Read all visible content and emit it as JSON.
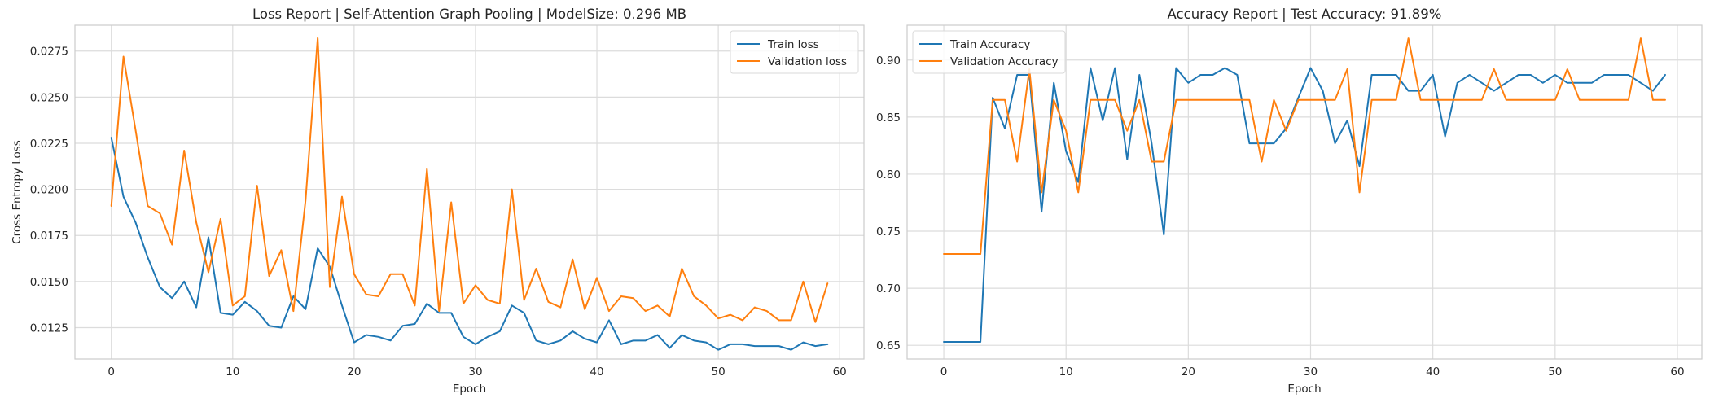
{
  "chart_data": [
    {
      "type": "line",
      "title": "Loss Report | Self-Attention Graph Pooling | ModelSize: 0.296 MB",
      "xlabel": "Epoch",
      "ylabel": "Cross Entropy Loss",
      "xlim": [
        -3,
        62
      ],
      "ylim": [
        0.0108,
        0.0289
      ],
      "xticks": [
        0,
        10,
        20,
        30,
        40,
        50,
        60
      ],
      "yticks": [
        0.0125,
        0.015,
        0.0175,
        0.02,
        0.0225,
        0.025,
        0.0275
      ],
      "ytick_labels": [
        "0.0125",
        "0.0150",
        "0.0175",
        "0.0200",
        "0.0225",
        "0.0250",
        "0.0275"
      ],
      "grid": true,
      "legend_position": "top-right",
      "series": [
        {
          "name": "Train loss",
          "color": "#1f77b4",
          "values": [
            0.0228,
            0.0196,
            0.0182,
            0.0163,
            0.0147,
            0.0141,
            0.015,
            0.0136,
            0.0174,
            0.0133,
            0.0132,
            0.0139,
            0.0134,
            0.0126,
            0.0125,
            0.0142,
            0.0135,
            0.0168,
            0.0158,
            0.0137,
            0.0117,
            0.0121,
            0.012,
            0.0118,
            0.0126,
            0.0127,
            0.0138,
            0.0133,
            0.0133,
            0.012,
            0.0116,
            0.012,
            0.0123,
            0.0137,
            0.0133,
            0.0118,
            0.0116,
            0.0118,
            0.0123,
            0.0119,
            0.0117,
            0.0129,
            0.0116,
            0.0118,
            0.0118,
            0.0121,
            0.0114,
            0.0121,
            0.0118,
            0.0117,
            0.0113,
            0.0116,
            0.0116,
            0.0115,
            0.0115,
            0.0115,
            0.0113,
            0.0117,
            0.0115,
            0.0116
          ]
        },
        {
          "name": "Validation loss",
          "color": "#ff7f0e",
          "values": [
            0.0191,
            0.0272,
            0.0232,
            0.0191,
            0.0187,
            0.017,
            0.0221,
            0.0182,
            0.0155,
            0.0184,
            0.0137,
            0.0142,
            0.0202,
            0.0153,
            0.0167,
            0.0134,
            0.0194,
            0.0282,
            0.0147,
            0.0196,
            0.0154,
            0.0143,
            0.0142,
            0.0154,
            0.0154,
            0.0137,
            0.0211,
            0.0134,
            0.0193,
            0.0138,
            0.0148,
            0.014,
            0.0138,
            0.02,
            0.014,
            0.0157,
            0.0139,
            0.0136,
            0.0162,
            0.0135,
            0.0152,
            0.0134,
            0.0142,
            0.0141,
            0.0134,
            0.0137,
            0.0131,
            0.0157,
            0.0142,
            0.0137,
            0.013,
            0.0132,
            0.0129,
            0.0136,
            0.0134,
            0.0129,
            0.0129,
            0.015,
            0.0128,
            0.0149
          ]
        }
      ]
    },
    {
      "type": "line",
      "title": "Accuracy Report | Test Accuracy: 91.89%",
      "xlabel": "Epoch",
      "ylabel": "",
      "xlim": [
        -3,
        62
      ],
      "ylim": [
        0.638,
        0.9305
      ],
      "xticks": [
        0,
        10,
        20,
        30,
        40,
        50,
        60
      ],
      "yticks": [
        0.65,
        0.7,
        0.75,
        0.8,
        0.85,
        0.9
      ],
      "ytick_labels": [
        "0.65",
        "0.70",
        "0.75",
        "0.80",
        "0.85",
        "0.90"
      ],
      "grid": true,
      "legend_position": "top-left",
      "series": [
        {
          "name": "Train Accuracy",
          "color": "#1f77b4",
          "values": [
            0.653,
            0.653,
            0.653,
            0.653,
            0.867,
            0.84,
            0.887,
            0.887,
            0.767,
            0.88,
            0.82,
            0.793,
            0.893,
            0.847,
            0.893,
            0.813,
            0.887,
            0.827,
            0.747,
            0.893,
            0.88,
            0.887,
            0.887,
            0.893,
            0.887,
            0.827,
            0.827,
            0.827,
            0.84,
            0.867,
            0.893,
            0.873,
            0.827,
            0.847,
            0.807,
            0.887,
            0.887,
            0.887,
            0.873,
            0.873,
            0.887,
            0.833,
            0.88,
            0.887,
            0.88,
            0.873,
            0.88,
            0.887,
            0.887,
            0.88,
            0.887,
            0.88,
            0.88,
            0.88,
            0.887,
            0.887,
            0.887,
            0.88,
            0.873,
            0.887
          ]
        },
        {
          "name": "Validation Accuracy",
          "color": "#ff7f0e",
          "values": [
            0.73,
            0.73,
            0.73,
            0.73,
            0.865,
            0.865,
            0.811,
            0.892,
            0.784,
            0.865,
            0.838,
            0.784,
            0.865,
            0.865,
            0.865,
            0.838,
            0.865,
            0.811,
            0.811,
            0.865,
            0.865,
            0.865,
            0.865,
            0.865,
            0.865,
            0.865,
            0.811,
            0.865,
            0.838,
            0.865,
            0.865,
            0.865,
            0.865,
            0.892,
            0.784,
            0.865,
            0.865,
            0.865,
            0.919,
            0.865,
            0.865,
            0.865,
            0.865,
            0.865,
            0.865,
            0.892,
            0.865,
            0.865,
            0.865,
            0.865,
            0.865,
            0.892,
            0.865,
            0.865,
            0.865,
            0.865,
            0.865,
            0.919,
            0.865,
            0.865
          ]
        }
      ]
    }
  ]
}
